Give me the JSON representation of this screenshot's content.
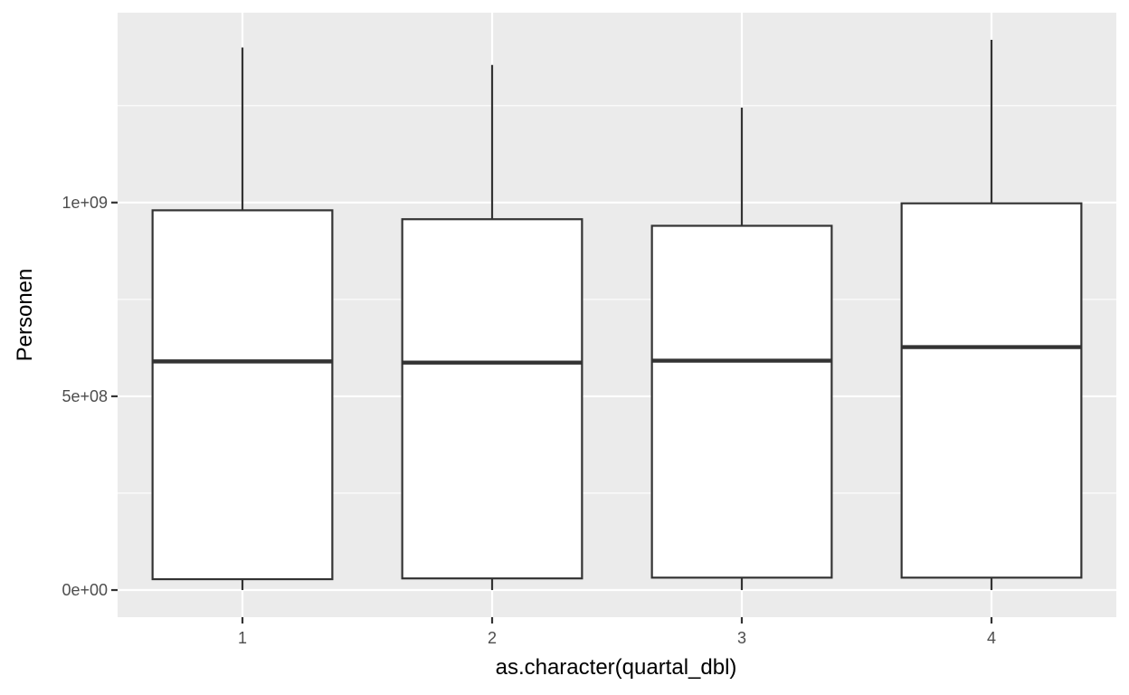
{
  "chart_data": {
    "type": "boxplot",
    "title": "",
    "xlabel": "as.character(quartal_dbl)",
    "ylabel": "Personen",
    "categories": [
      "1",
      "2",
      "3",
      "4"
    ],
    "boxes": [
      {
        "category": "1",
        "whisker_low": 0.0,
        "q1": 28000000.0,
        "median": 590000000.0,
        "q3": 980000000.0,
        "whisker_high": 1400000000.0
      },
      {
        "category": "2",
        "whisker_low": 0.0,
        "q1": 30000000.0,
        "median": 587000000.0,
        "q3": 957000000.0,
        "whisker_high": 1355000000.0
      },
      {
        "category": "3",
        "whisker_low": 0.0,
        "q1": 32000000.0,
        "median": 592000000.0,
        "q3": 940000000.0,
        "whisker_high": 1245000000.0
      },
      {
        "category": "4",
        "whisker_low": 0.0,
        "q1": 32000000.0,
        "median": 627000000.0,
        "q3": 998000000.0,
        "whisker_high": 1420000000.0
      }
    ],
    "y_ticks": [
      0,
      500000000,
      1000000000
    ],
    "y_tick_labels": [
      "0e+00",
      "5e+08",
      "1e+09"
    ],
    "y_minor_ticks": [
      250000000,
      750000000,
      1250000000
    ],
    "ylim": [
      -70000000,
      1490000000
    ],
    "grid": true,
    "legend": "none",
    "colors": {
      "panel_background": "#ebebeb",
      "gridline": "#ffffff",
      "box_fill": "#ffffff",
      "box_stroke": "#333333",
      "tick_label": "#4d4d4d",
      "axis_title": "#000000"
    }
  }
}
